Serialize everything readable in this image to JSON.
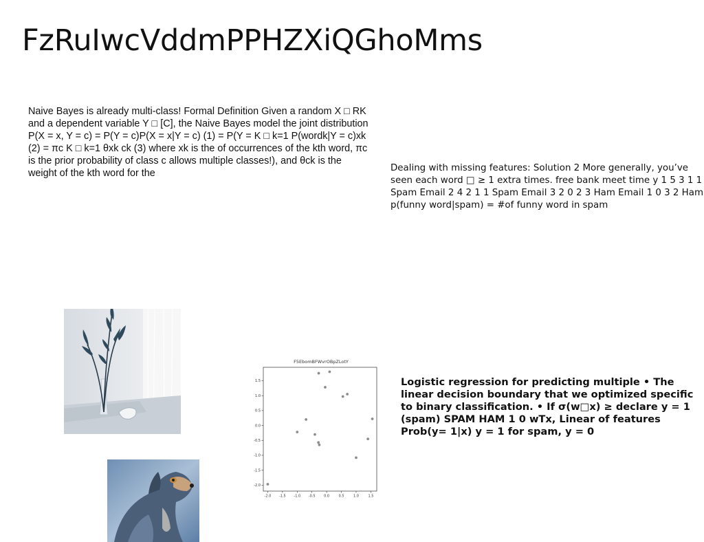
{
  "title": "FzRuIwcVddmPPHZXiQGhoMms",
  "paragraph_naive_bayes": "Naive Bayes is already multi-class! Formal Definition Given a random X □ RK and a dependent variable Y □ [C], the Naive Bayes model the joint distribution P(X = x, Y = c) = P(Y = c)P(X = x|Y = c) (1) = P(Y = K □ k=1 P(wordk|Y = c)xk (2) = πc K □ k=1 θxk ck (3) where xk is the of occurrences of the kth word, πc is the prior probability of class c allows multiple classes!), and θck is the weight of the kth word for the",
  "paragraph_missing_features": "Dealing with missing features: Solution 2 More generally, you’ve seen each word □ ≥ 1 extra times. free bank meet time y 1 5 3 1 1 Spam Email 2 4 2 1 1 Spam Email 3 2 0 2 3 Ham Email 1 0 3 2 Ham p(funny word|spam) = #of funny word in spam",
  "paragraph_logistic": "Logistic regression for predicting multiple • The linear decision boundary that we optimized specific to binary classification. • If σ(w□x) ≥ declare y = 1 (spam) SPAM HAM 1 0 wTx, Linear of features Prob(y= 1|x) y = 1 for spam, y = 0",
  "images": {
    "vase": "vase-with-plant-photo",
    "dog": "dog-photo"
  },
  "chart_data": {
    "type": "scatter",
    "title": "F5EbomBFWvrOBpZLotY",
    "xlabel": "",
    "ylabel": "",
    "xlim": [
      -2.15,
      1.7
    ],
    "ylim": [
      -2.2,
      1.95
    ],
    "xticks": [
      "-2.0",
      "-1.5",
      "-1.0",
      "-0.5",
      "0.0",
      "0.5",
      "1.0",
      "1.5"
    ],
    "yticks": [
      "1.5",
      "1.0",
      "0.5",
      "0.0",
      "-0.5",
      "-1.0",
      "-1.5",
      "-2.0"
    ],
    "grid": false,
    "color": "#8c8c8c",
    "points": [
      {
        "x": -2.0,
        "y": -1.97
      },
      {
        "x": -1.0,
        "y": -0.22
      },
      {
        "x": -0.7,
        "y": 0.2
      },
      {
        "x": -0.4,
        "y": -0.3
      },
      {
        "x": -0.28,
        "y": -0.57
      },
      {
        "x": -0.25,
        "y": -0.65
      },
      {
        "x": -0.27,
        "y": 1.75
      },
      {
        "x": -0.05,
        "y": 1.28
      },
      {
        "x": 0.1,
        "y": 1.8
      },
      {
        "x": 0.55,
        "y": 0.97
      },
      {
        "x": 0.7,
        "y": 1.05
      },
      {
        "x": 1.0,
        "y": -1.08
      },
      {
        "x": 1.4,
        "y": -0.45
      },
      {
        "x": 1.55,
        "y": 0.22
      }
    ]
  }
}
